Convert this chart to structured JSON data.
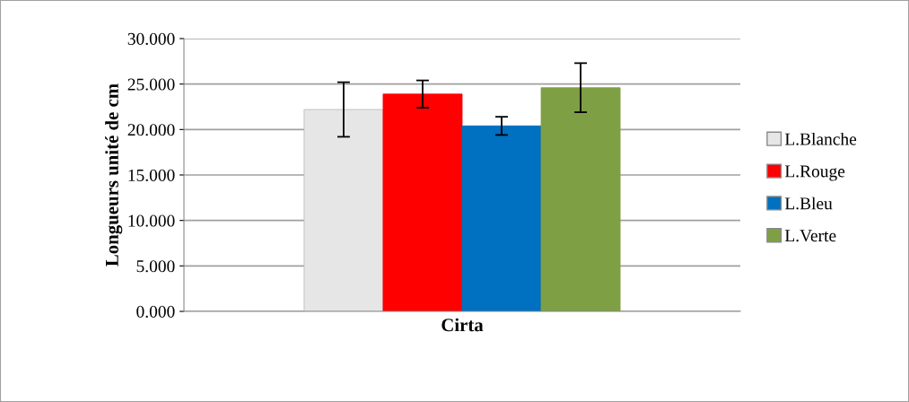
{
  "chart_data": {
    "type": "bar",
    "xlabel": "Cirta",
    "ylabel": "Longueurs unité de cm",
    "categories": [
      null
    ],
    "series": [
      {
        "name": "L.Blanche",
        "color": "#e6e6e6",
        "values": [
          22.2
        ],
        "errors": [
          3.0
        ]
      },
      {
        "name": "L.Rouge",
        "color": "#ff0000",
        "values": [
          23.9
        ],
        "errors": [
          1.5
        ]
      },
      {
        "name": "L.Bleu",
        "color": "#0070c0",
        "values": [
          20.4
        ],
        "errors": [
          1.0
        ]
      },
      {
        "name": "L.Verte",
        "color": "#7f9f45",
        "values": [
          24.6
        ],
        "errors": [
          2.7
        ]
      }
    ],
    "ylim": [
      0,
      30
    ],
    "yticks": [
      {
        "value": 0,
        "label": "0.000"
      },
      {
        "value": 5,
        "label": "5.000"
      },
      {
        "value": 10,
        "label": "10.000"
      },
      {
        "value": 15,
        "label": "15.000"
      },
      {
        "value": 20,
        "label": "20.000"
      },
      {
        "value": 25,
        "label": "25.000"
      },
      {
        "value": 30,
        "label": "30.000"
      }
    ],
    "grid": "y",
    "legend": "right"
  }
}
